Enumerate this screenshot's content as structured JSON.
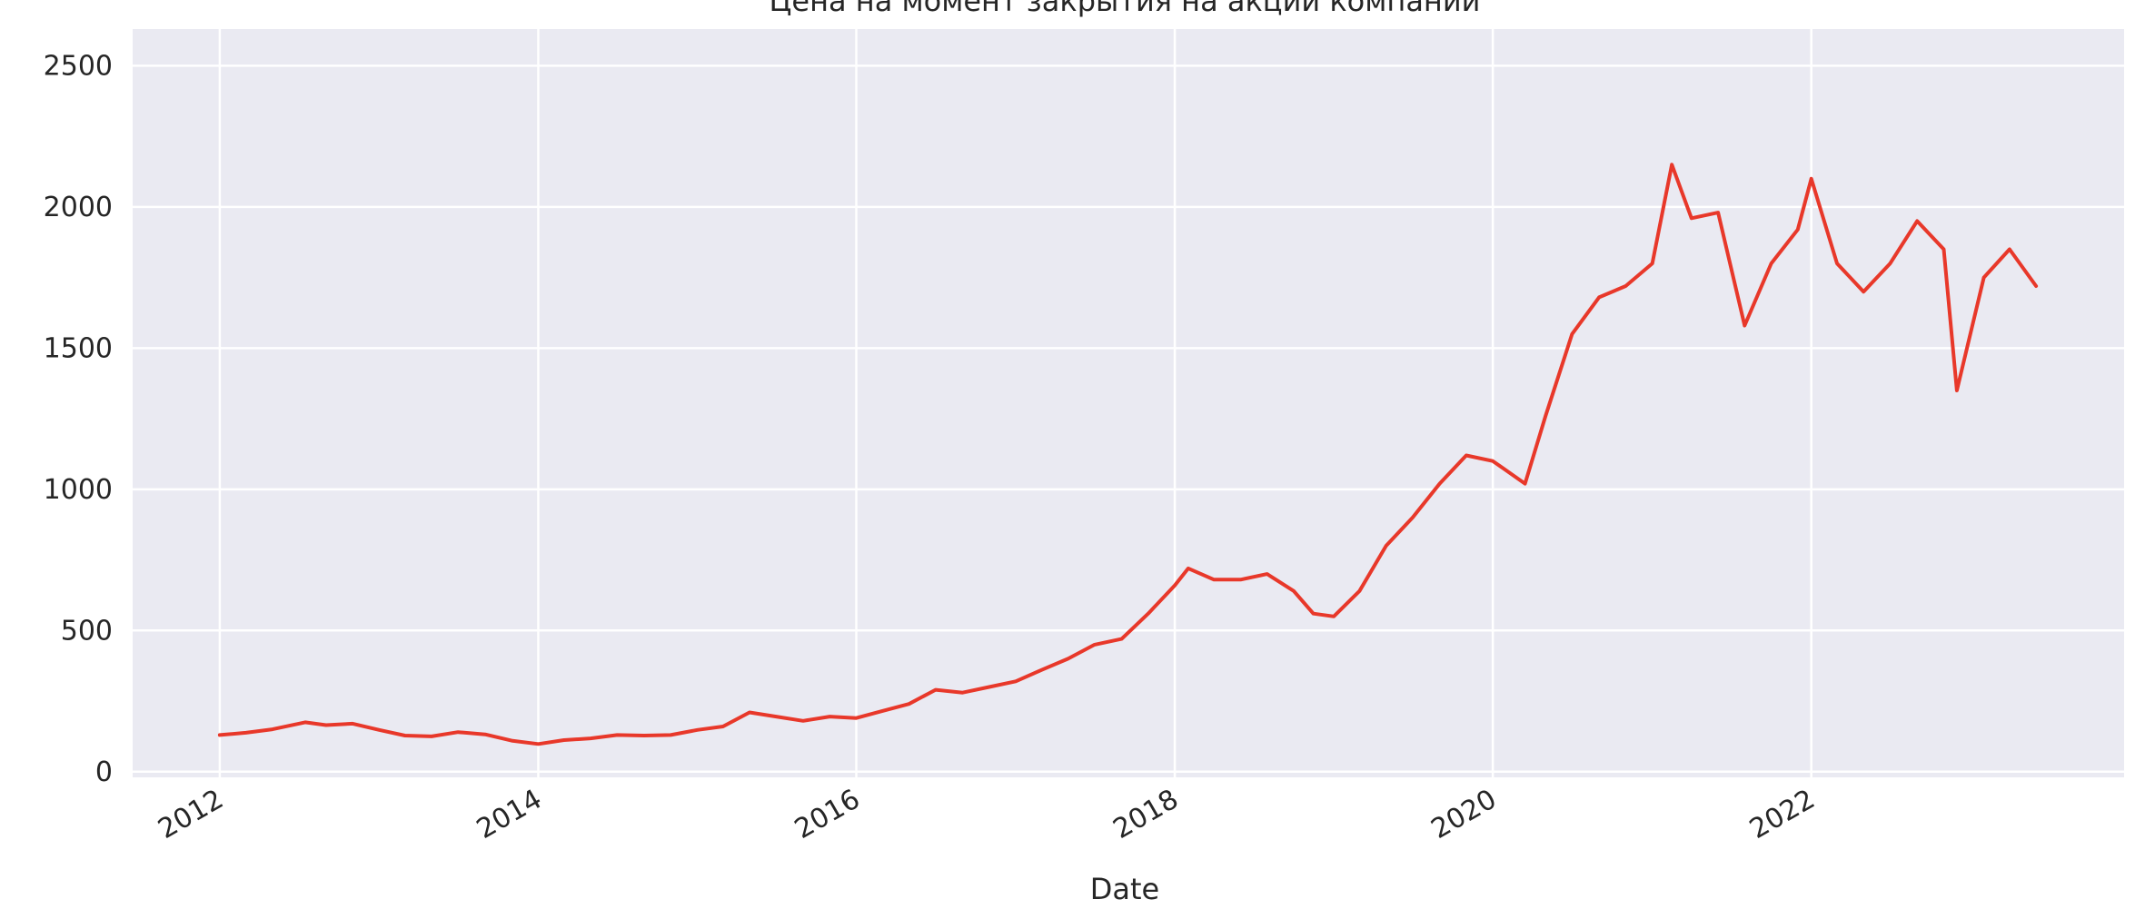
{
  "chart_data": {
    "type": "line",
    "title": "Цена на момент закрытия на акции компании",
    "xlabel": "Date",
    "ylabel": "",
    "x_ticks": [
      "2012",
      "2014",
      "2016",
      "2018",
      "2020",
      "2022"
    ],
    "y_ticks": [
      "0",
      "500",
      "1000",
      "1500",
      "2000",
      "2500"
    ],
    "ylim": [
      -20,
      2630
    ],
    "xlim": [
      "2011-06-15",
      "2023-12-20"
    ],
    "grid": true,
    "colors": {
      "line": "#e8382a",
      "background": "#eaeaf2",
      "grid": "#ffffff"
    },
    "series": [
      {
        "x": [
          "2012-01-01",
          "2012-03-01",
          "2012-05-01",
          "2012-07-15",
          "2012-09-01",
          "2012-11-01",
          "2013-01-01",
          "2013-03-01",
          "2013-05-01",
          "2013-07-01",
          "2013-09-01",
          "2013-11-01",
          "2014-01-01",
          "2014-03-01",
          "2014-05-01",
          "2014-07-01",
          "2014-09-01",
          "2014-11-01",
          "2015-01-01",
          "2015-03-01",
          "2015-05-01",
          "2015-07-01",
          "2015-09-01",
          "2015-11-01",
          "2016-01-01",
          "2016-03-01",
          "2016-05-01",
          "2016-07-01",
          "2016-09-01",
          "2016-11-01",
          "2017-01-01",
          "2017-03-01",
          "2017-05-01",
          "2017-07-01",
          "2017-09-01",
          "2017-11-01",
          "2018-01-01",
          "2018-02-01",
          "2018-04-01",
          "2018-06-01",
          "2018-08-01",
          "2018-10-01",
          "2018-11-15",
          "2019-01-01",
          "2019-03-01",
          "2019-05-01",
          "2019-07-01",
          "2019-09-01",
          "2019-11-01",
          "2020-01-01",
          "2020-03-15",
          "2020-05-01",
          "2020-07-01",
          "2020-09-01",
          "2020-11-01",
          "2021-01-01",
          "2021-02-15",
          "2021-04-01",
          "2021-06-01",
          "2021-08-01",
          "2021-10-01",
          "2021-12-01",
          "2022-01-01",
          "2022-03-01",
          "2022-05-01",
          "2022-07-01",
          "2022-09-01",
          "2022-11-01",
          "2022-12-01",
          "2023-02-01",
          "2023-04-01",
          "2023-06-01"
        ],
        "y": [
          130,
          138,
          150,
          175,
          165,
          170,
          148,
          128,
          125,
          140,
          132,
          110,
          98,
          112,
          118,
          130,
          128,
          130,
          148,
          160,
          210,
          195,
          180,
          195,
          190,
          215,
          240,
          290,
          280,
          300,
          320,
          360,
          400,
          450,
          470,
          560,
          660,
          720,
          680,
          680,
          700,
          640,
          560,
          550,
          640,
          800,
          900,
          1020,
          1120,
          1100,
          1020,
          1260,
          1550,
          1680,
          1720,
          1800,
          2150,
          1960,
          1980,
          1580,
          1800,
          1920,
          2100,
          1800,
          1700,
          1800,
          1950,
          1850,
          1350,
          1750,
          1850,
          1720
        ]
      }
    ]
  }
}
